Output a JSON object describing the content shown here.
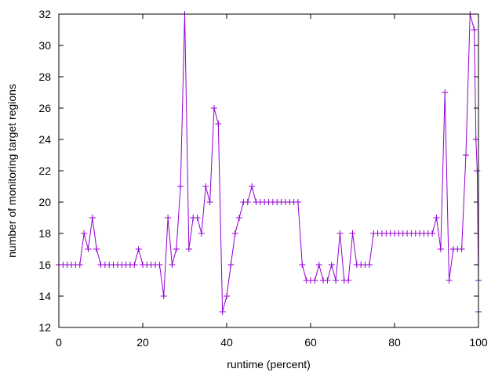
{
  "chart_data": {
    "type": "line",
    "title": "",
    "xlabel": "runtime (percent)",
    "ylabel": "number of monitoring target regions",
    "xlim": [
      0,
      100
    ],
    "ylim": [
      12,
      32
    ],
    "xticks": [
      0,
      20,
      40,
      60,
      80,
      100
    ],
    "yticks": [
      12,
      14,
      16,
      18,
      20,
      22,
      24,
      26,
      28,
      30,
      32
    ],
    "grid": false,
    "legend": "none",
    "marker": "plus",
    "color": "#9400d3",
    "series": [
      {
        "x": [
          0,
          1,
          2,
          3,
          4,
          5,
          6,
          7,
          8,
          9,
          10,
          11,
          12,
          13,
          14,
          15,
          16,
          17,
          18,
          19,
          20,
          21,
          22,
          23,
          24,
          25,
          26,
          27,
          28,
          29,
          30,
          31,
          32,
          33,
          34,
          35,
          36,
          37,
          38,
          39,
          40,
          41,
          42,
          43,
          44,
          45,
          46,
          47,
          48,
          49,
          50,
          51,
          52,
          53,
          54,
          55,
          56,
          57,
          58,
          59,
          60,
          61,
          62,
          63,
          64,
          65,
          66,
          67,
          68,
          69,
          70,
          71,
          72,
          73,
          74,
          75,
          76,
          77,
          78,
          79,
          80,
          81,
          82,
          83,
          84,
          85,
          86,
          87,
          88,
          89,
          90,
          91,
          92,
          93,
          94,
          95,
          96,
          97,
          98,
          99,
          99.4,
          99.7,
          100,
          100
        ],
        "y": [
          16,
          16,
          16,
          16,
          16,
          16,
          18,
          17,
          19,
          17,
          16,
          16,
          16,
          16,
          16,
          16,
          16,
          16,
          16,
          17,
          16,
          16,
          16,
          16,
          16,
          14,
          19,
          16,
          17,
          21,
          32,
          17,
          19,
          19,
          18,
          21,
          20,
          26,
          25,
          13,
          14,
          16,
          18,
          19,
          20,
          20,
          21,
          20,
          20,
          20,
          20,
          20,
          20,
          20,
          20,
          20,
          20,
          20,
          16,
          15,
          15,
          15,
          16,
          15,
          15,
          16,
          15,
          18,
          15,
          15,
          18,
          16,
          16,
          16,
          16,
          18,
          18,
          18,
          18,
          18,
          18,
          18,
          18,
          18,
          18,
          18,
          18,
          18,
          18,
          18,
          19,
          17,
          27,
          15,
          17,
          17,
          17,
          23,
          32,
          31,
          24,
          22,
          15,
          13
        ]
      }
    ]
  }
}
